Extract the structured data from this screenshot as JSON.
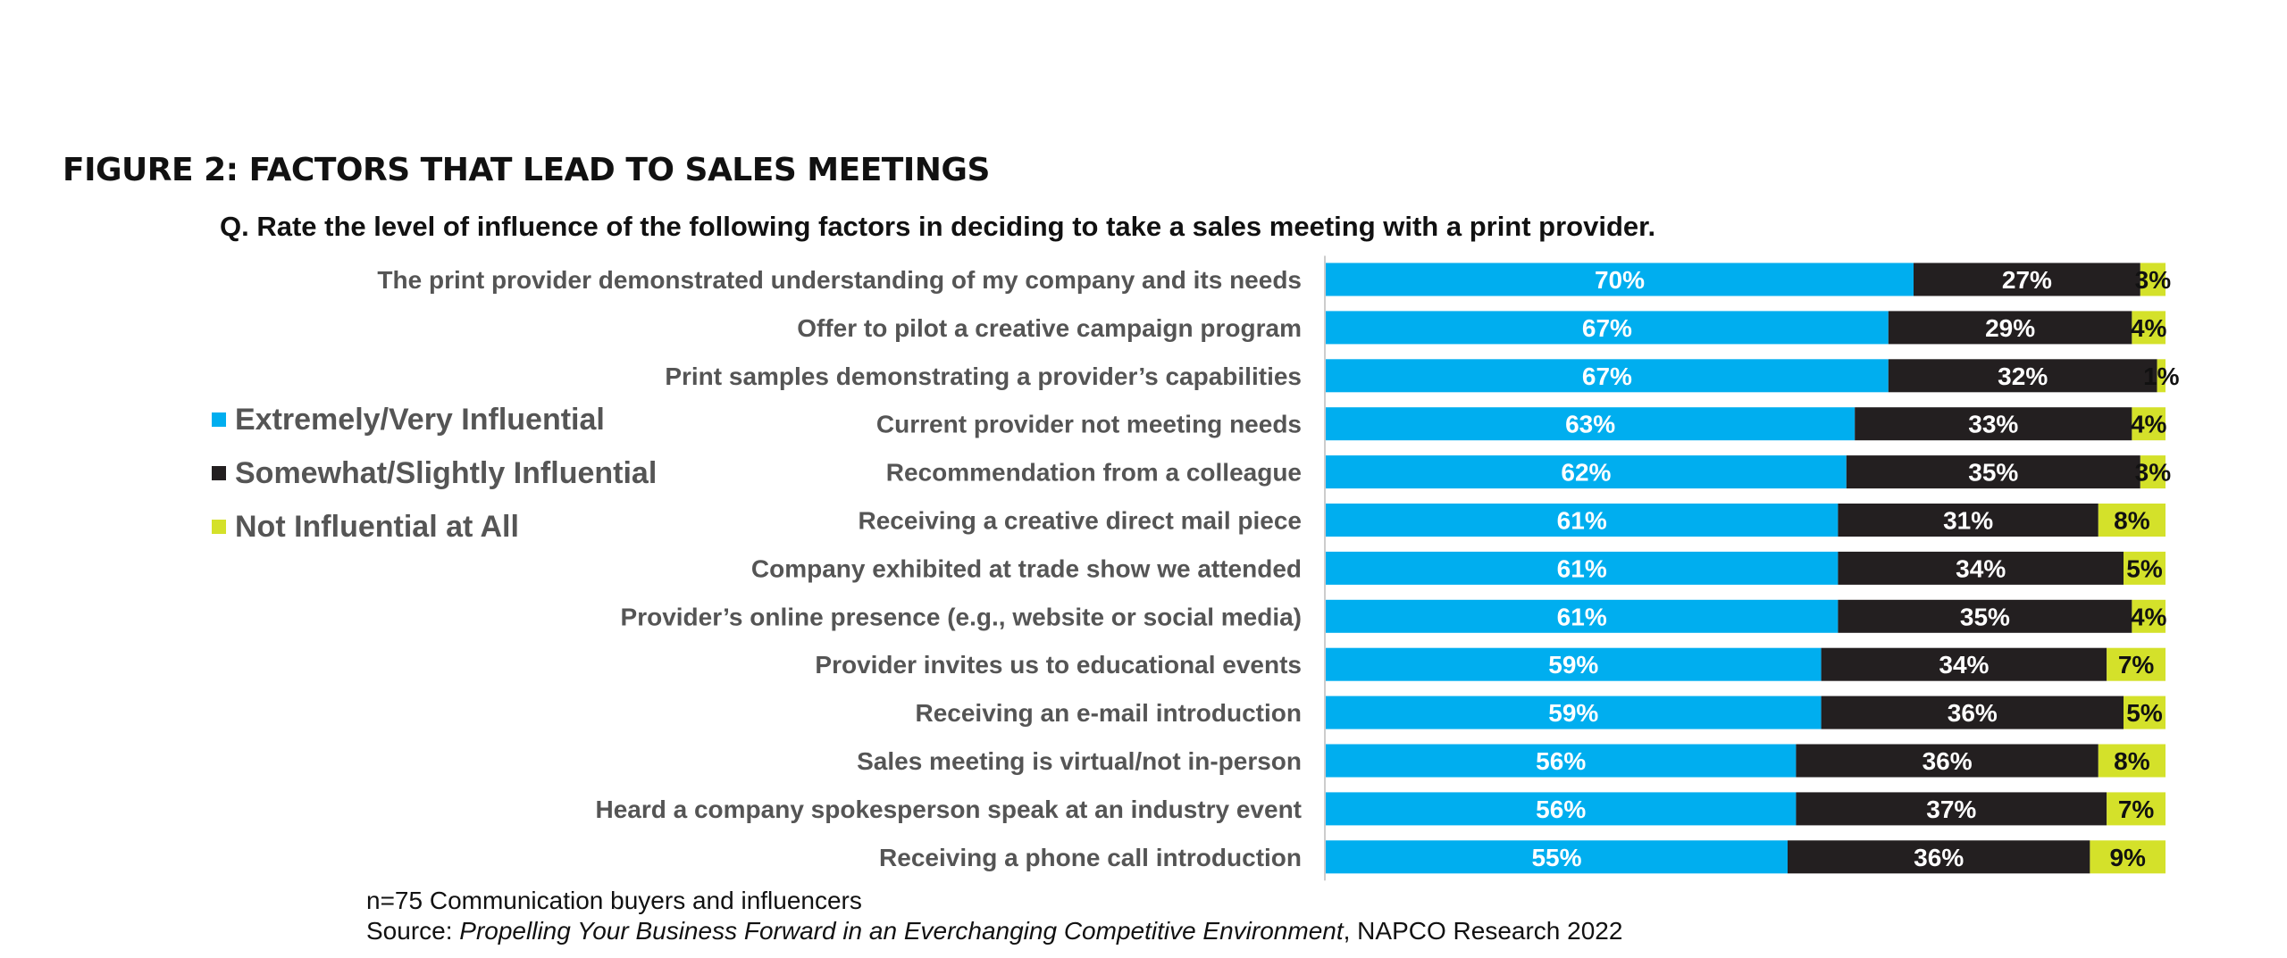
{
  "figure_title": "FIGURE 2: FACTORS THAT LEAD TO SALES MEETINGS",
  "question": "Q. Rate the level of influence of the following factors in deciding to take a sales meeting with a print provider.",
  "colors": {
    "extremely": "#00aeef",
    "somewhat": "#231f20",
    "not": "#d4e12a"
  },
  "chart_data": {
    "type": "bar",
    "orientation": "horizontal",
    "stacked": true,
    "categories": [
      "The print provider demonstrated understanding of my company and its needs",
      "Offer to pilot a creative campaign program",
      "Print samples demonstrating a provider’s capabilities",
      "Current provider not meeting needs",
      "Recommendation from a colleague",
      "Receiving a creative direct mail piece",
      "Company exhibited at trade show we attended",
      "Provider’s online presence (e.g., website or social media)",
      "Provider invites us to educational events",
      "Receiving an e-mail introduction",
      "Sales meeting is virtual/not in-person",
      "Heard a company spokesperson speak at an industry event",
      "Receiving a phone call introduction"
    ],
    "series": [
      {
        "name": "Extremely/Very Influential",
        "color": "#00aeef",
        "label_color": "#ffffff",
        "values": [
          70,
          67,
          67,
          63,
          62,
          61,
          61,
          61,
          59,
          59,
          56,
          56,
          55
        ]
      },
      {
        "name": "Somewhat/Slightly Influential",
        "color": "#231f20",
        "label_color": "#ffffff",
        "values": [
          27,
          29,
          32,
          33,
          35,
          31,
          34,
          35,
          34,
          36,
          36,
          37,
          36
        ]
      },
      {
        "name": "Not Influential at All",
        "color": "#d4e12a",
        "label_color": "#111111",
        "values": [
          3,
          4,
          1,
          4,
          3,
          8,
          5,
          4,
          7,
          5,
          8,
          7,
          9
        ]
      }
    ],
    "value_suffix": "%",
    "legend": "left"
  },
  "footnote": {
    "sample": "n=75 Communication buyers and influencers",
    "source_prefix": "Source: ",
    "source_title": "Propelling Your Business Forward in an Everchanging Competitive Environment",
    "source_suffix": ", NAPCO Research 2022"
  }
}
